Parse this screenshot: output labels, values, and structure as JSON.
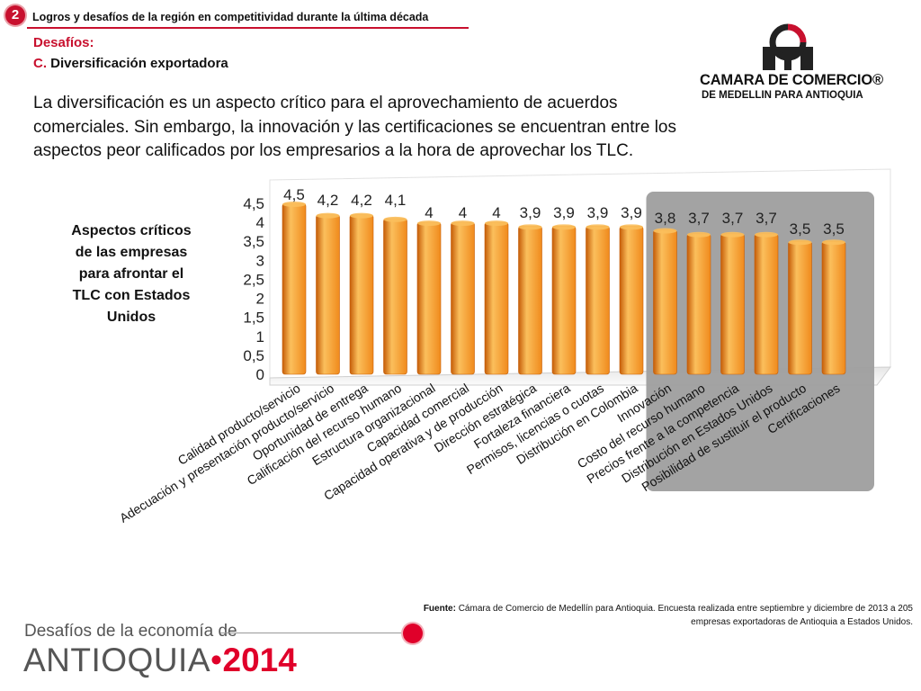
{
  "header": {
    "badge_number": "2",
    "title": "Logros y desafíos de la región en competitividad durante la última década"
  },
  "section": {
    "label": "Desafíos:",
    "letter": "C.",
    "subtitle": "Diversificación exportadora"
  },
  "logo": {
    "line1": "CAMARA DE COMERCIO®",
    "line2": "DE MEDELLIN PARA ANTIOQUIA"
  },
  "intro_text": "La diversificación es un aspecto crítico para el aprovechamiento de acuerdos comerciales. Sin embargo, la innovación y las certificaciones se encuentran entre los aspectos peor calificados por los empresarios a la hora de aprovechar los TLC.",
  "chart_side_title": "Aspectos críticos de las empresas para afrontar el TLC con Estados Unidos",
  "chart_data": {
    "type": "bar",
    "categories": [
      "Calidad producto/servicio",
      "Adecuación y presentación producto/servicio",
      "Oportunidad de entrega",
      "Calificación del recurso humano",
      "Estructura organizacional",
      "Capacidad comercial",
      "Capacidad operativa y de producción",
      "Dirección estratégica",
      "Fortaleza financiera",
      "Permisos, licencias o cuotas",
      "Distribución en Colombia",
      "Innovación",
      "Costo del recurso humano",
      "Precios frente a la competencia",
      "Distribución en Estados Unidos",
      "Posibilidad de sustituir el producto",
      "Certificaciones"
    ],
    "values": [
      4.5,
      4.2,
      4.2,
      4.1,
      4,
      4,
      4,
      3.9,
      3.9,
      3.9,
      3.9,
      3.8,
      3.7,
      3.7,
      3.7,
      3.5,
      3.5
    ],
    "value_labels": [
      "4,5",
      "4,2",
      "4,2",
      "4,1",
      "4",
      "4",
      "4",
      "3,9",
      "3,9",
      "3,9",
      "3,9",
      "3,8",
      "3,7",
      "3,7",
      "3,7",
      "3,5",
      "3,5"
    ],
    "y_ticks": [
      "0",
      "0,5",
      "1",
      "1,5",
      "2",
      "2,5",
      "3",
      "3,5",
      "4",
      "4,5"
    ],
    "ylim": [
      0,
      4.5
    ],
    "highlighted_from_index": 11,
    "colors": {
      "bar": "#f08a1c",
      "bar_light": "#fbbf5c",
      "bar_dark": "#c55d08",
      "highlight": "#9e9e9e"
    }
  },
  "source": {
    "label": "Fuente:",
    "text": "Cámara de Comercio de Medellín para Antioquia. Encuesta realizada entre septiembre y diciembre de 2013 a 205 empresas exportadoras de Antioquia a Estados Unidos."
  },
  "footer": {
    "small": "Desafíos de la economía de",
    "big": "ANTIOQUIA",
    "separator": "•",
    "year": "2014"
  }
}
